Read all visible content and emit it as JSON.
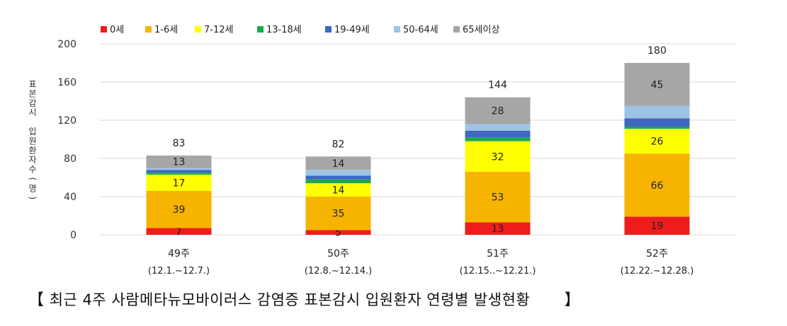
{
  "chart_data": {
    "type": "bar",
    "stacked": true,
    "categories": [
      "49주",
      "50주",
      "51주",
      "52주"
    ],
    "category_sublabels": [
      "(12.1.~12.7.)",
      "(12.8.~12.14.)",
      "(12.15..~12.21.)",
      "(12.22.~12.28.)"
    ],
    "series": [
      {
        "name": "0세",
        "color": "#ee1c1c",
        "values": [
          7,
          5,
          13,
          19
        ],
        "labels": [
          "7",
          "5",
          "13",
          "19"
        ]
      },
      {
        "name": "1-6세",
        "color": "#f6b400",
        "values": [
          39,
          35,
          53,
          66
        ],
        "labels": [
          "39",
          "35",
          "53",
          "66"
        ]
      },
      {
        "name": "7-12세",
        "color": "#ffff00",
        "values": [
          17,
          14,
          32,
          26
        ],
        "labels": [
          "17",
          "14",
          "32",
          "26"
        ]
      },
      {
        "name": "13-18세",
        "color": "#18a94f",
        "values": [
          2,
          4,
          4,
          2
        ],
        "labels": [
          "",
          "",
          "",
          ""
        ]
      },
      {
        "name": "19-49세",
        "color": "#3f67c0",
        "values": [
          3,
          4,
          7,
          9
        ],
        "labels": [
          "",
          "",
          "",
          ""
        ]
      },
      {
        "name": "50-64세",
        "color": "#9dc3e6",
        "values": [
          2,
          6,
          7,
          13
        ],
        "labels": [
          "",
          "",
          "",
          ""
        ]
      },
      {
        "name": "65세이상",
        "color": "#a6a6a6",
        "values": [
          13,
          14,
          28,
          45
        ],
        "labels": [
          "13",
          "14",
          "28",
          "45"
        ]
      }
    ],
    "totals": [
      83,
      82,
      144,
      180
    ],
    "ylabel": "표본감시 입원환자수(명)",
    "ylim": [
      0,
      200
    ],
    "yticks": [
      0,
      40,
      80,
      120,
      160,
      200
    ],
    "grid": true,
    "legend": "top"
  },
  "caption": {
    "open": "【",
    "text": "최근 4주 사람메타뉴모바이러스 감염증 표본감시 입원환자 연령별 발생현황",
    "close": "】"
  }
}
